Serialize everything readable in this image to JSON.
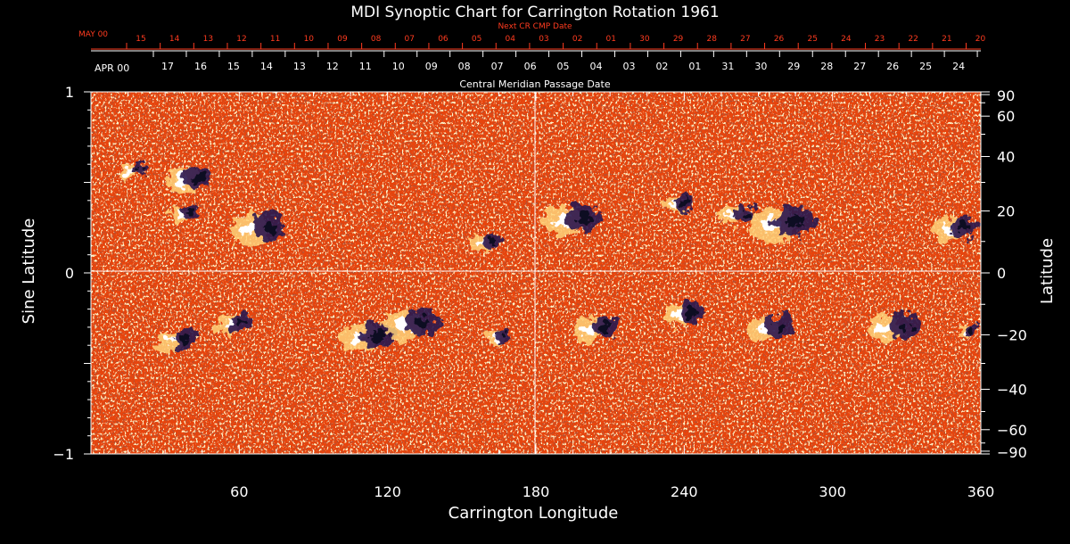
{
  "chart_data": {
    "type": "heatmap",
    "title": "MDI Synoptic Chart for Carrington Rotation 1961",
    "xlabel": "Carrington Longitude",
    "ylabel_left": "Sine Latitude",
    "ylabel_right": "Latitude",
    "xlim": [
      0,
      360
    ],
    "ylim": [
      -1,
      1
    ],
    "x_ticks": [
      60,
      120,
      180,
      240,
      300,
      360
    ],
    "y_left_ticks": [
      {
        "v": 1,
        "label": "1"
      },
      {
        "v": 0,
        "label": "0"
      },
      {
        "v": -1,
        "label": "−1"
      }
    ],
    "y_right_ticks": [
      90,
      60,
      40,
      20,
      0,
      -20,
      -40,
      -60,
      -90
    ],
    "y_right_tick_labels": [
      "90",
      "60",
      "40",
      "20",
      "0",
      "−20",
      "−40",
      "−60",
      "−90"
    ],
    "reference_lines": {
      "equator_sine_lat": 0,
      "central_meridian_longitude": 180
    },
    "top_axis_cmp": {
      "title": "Central Meridian Passage Date",
      "month_label": "APR 00",
      "dates": [
        "17",
        "16",
        "15",
        "14",
        "13",
        "12",
        "11",
        "10",
        "09",
        "08",
        "07",
        "06",
        "05",
        "04",
        "03",
        "02",
        "01",
        "31",
        "30",
        "29",
        "28",
        "27",
        "26",
        "25",
        "24"
      ],
      "longitudes": [
        30,
        45,
        60,
        75,
        90,
        105,
        120,
        135,
        150,
        165,
        180,
        195,
        210,
        225,
        240,
        255,
        270,
        285,
        300,
        315,
        330,
        345
      ]
    },
    "top_axis_next_cr": {
      "title": "Next CR CMP Date",
      "month_label": "MAY 00",
      "dates": [
        "15",
        "14",
        "13",
        "12",
        "11",
        "10",
        "09",
        "08",
        "07",
        "06",
        "05",
        "04",
        "03",
        "02",
        "01",
        "30",
        "29",
        "28",
        "27",
        "26",
        "25",
        "24",
        "23",
        "22",
        "21",
        "20"
      ]
    },
    "colormap": {
      "background": "#e8440c",
      "positive": "#ffffff",
      "negative": "#1a1040"
    },
    "active_regions": [
      {
        "lon": 18,
        "sinlat": 0.57,
        "r": 0.06
      },
      {
        "lon": 40,
        "sinlat": 0.52,
        "r": 0.1
      },
      {
        "lon": 38,
        "sinlat": 0.33,
        "r": 0.07
      },
      {
        "lon": 68,
        "sinlat": 0.25,
        "r": 0.12
      },
      {
        "lon": 160,
        "sinlat": 0.17,
        "r": 0.07
      },
      {
        "lon": 195,
        "sinlat": 0.3,
        "r": 0.12
      },
      {
        "lon": 238,
        "sinlat": 0.38,
        "r": 0.06
      },
      {
        "lon": 262,
        "sinlat": 0.32,
        "r": 0.08
      },
      {
        "lon": 280,
        "sinlat": 0.28,
        "r": 0.14
      },
      {
        "lon": 350,
        "sinlat": 0.25,
        "r": 0.1
      },
      {
        "lon": 35,
        "sinlat": -0.37,
        "r": 0.09
      },
      {
        "lon": 58,
        "sinlat": -0.28,
        "r": 0.08
      },
      {
        "lon": 112,
        "sinlat": -0.35,
        "r": 0.12
      },
      {
        "lon": 130,
        "sinlat": -0.28,
        "r": 0.12
      },
      {
        "lon": 165,
        "sinlat": -0.35,
        "r": 0.06
      },
      {
        "lon": 205,
        "sinlat": -0.3,
        "r": 0.1
      },
      {
        "lon": 240,
        "sinlat": -0.22,
        "r": 0.09
      },
      {
        "lon": 275,
        "sinlat": -0.3,
        "r": 0.1
      },
      {
        "lon": 325,
        "sinlat": -0.3,
        "r": 0.11
      },
      {
        "lon": 355,
        "sinlat": -0.32,
        "r": 0.05
      }
    ]
  }
}
